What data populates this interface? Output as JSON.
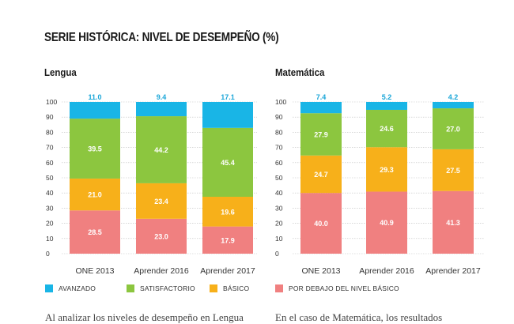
{
  "page": {
    "title": "SERIE HISTÓRICA: NIVEL DE DESEMPEÑO (%)",
    "body_text_left": "Al analizar los niveles de desempeño en Lengua",
    "body_text_right": "En el caso de Matemática, los resultados"
  },
  "colors": {
    "avanzado": "#19b5e6",
    "satisfactorio": "#8cc63f",
    "basico": "#f7b01a",
    "debajo": "#f08080",
    "grid": "#bfbfbf",
    "segment_label": "#ffffff",
    "top_label": "#19a6d8"
  },
  "legend": [
    {
      "key": "avanzado",
      "label": "AVANZADO"
    },
    {
      "key": "satisfactorio",
      "label": "SATISFACTORIO"
    },
    {
      "key": "basico",
      "label": "BÁSICO"
    },
    {
      "key": "debajo",
      "label": "POR DEBAJO DEL NIVEL BÁSICO"
    }
  ],
  "chart_data": [
    {
      "type": "bar",
      "stacked": true,
      "title": "Lengua",
      "categories": [
        "ONE 2013",
        "Aprender 2016",
        "Aprender 2017"
      ],
      "y_ticks": [
        "100",
        "90",
        "80",
        "70",
        "60",
        "50",
        "40",
        "30",
        "20",
        "10",
        "0"
      ],
      "ylim": [
        0,
        100
      ],
      "grid": true,
      "legend_position": "bottom",
      "series": [
        {
          "name": "POR DEBAJO DEL NIVEL BÁSICO",
          "key": "debajo",
          "values": [
            28.5,
            23.0,
            17.9
          ]
        },
        {
          "name": "BÁSICO",
          "key": "basico",
          "values": [
            21.0,
            23.4,
            19.6
          ]
        },
        {
          "name": "SATISFACTORIO",
          "key": "satisfactorio",
          "values": [
            39.5,
            44.2,
            45.4
          ]
        },
        {
          "name": "AVANZADO",
          "key": "avanzado",
          "values": [
            11.0,
            9.4,
            17.1
          ]
        }
      ],
      "labels": {
        "debajo": [
          "28.5",
          "23.0",
          "17.9"
        ],
        "basico": [
          "21.0",
          "23.4",
          "19.6"
        ],
        "satisfactorio": [
          "39.5",
          "44.2",
          "45.4"
        ],
        "avanzado": [
          "11.0",
          "9.4",
          "17.1"
        ]
      }
    },
    {
      "type": "bar",
      "stacked": true,
      "title": "Matemática",
      "categories": [
        "ONE 2013",
        "Aprender 2016",
        "Aprender 2017"
      ],
      "y_ticks": [
        "100",
        "90",
        "80",
        "70",
        "60",
        "50",
        "40",
        "30",
        "20",
        "10",
        "0"
      ],
      "ylim": [
        0,
        100
      ],
      "grid": true,
      "legend_position": "bottom",
      "series": [
        {
          "name": "POR DEBAJO DEL NIVEL BÁSICO",
          "key": "debajo",
          "values": [
            40.0,
            40.9,
            41.3
          ]
        },
        {
          "name": "BÁSICO",
          "key": "basico",
          "values": [
            24.7,
            29.3,
            27.5
          ]
        },
        {
          "name": "SATISFACTORIO",
          "key": "satisfactorio",
          "values": [
            27.9,
            24.6,
            27.0
          ]
        },
        {
          "name": "AVANZADO",
          "key": "avanzado",
          "values": [
            7.4,
            5.2,
            4.2
          ]
        }
      ],
      "labels": {
        "debajo": [
          "40.0",
          "40.9",
          "41.3"
        ],
        "basico": [
          "24.7",
          "29.3",
          "27.5"
        ],
        "satisfactorio": [
          "27.9",
          "24.6",
          "27.0"
        ],
        "avanzado": [
          "7.4",
          "5.2",
          "4.2"
        ]
      }
    }
  ]
}
